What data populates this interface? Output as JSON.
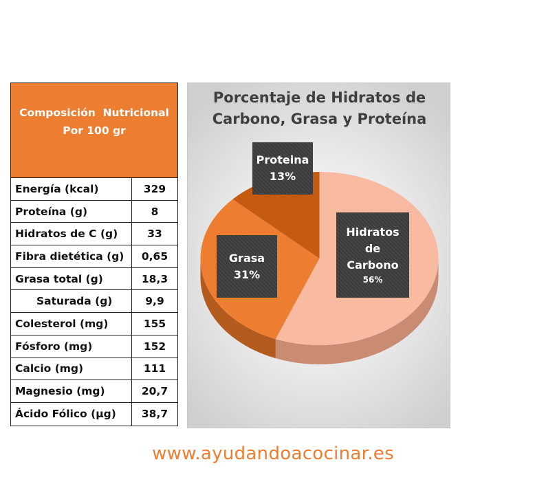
{
  "table": {
    "header_line1": "Composición  Nutricional",
    "header_line2": "Por 100 gr",
    "rows": [
      {
        "label": "Energía (kcal)",
        "value": "329"
      },
      {
        "label": "Proteína (g)",
        "value": "8"
      },
      {
        "label": "Hidratos de C (g)",
        "value": "33"
      },
      {
        "label": "Fibra dietética (g)",
        "value": "0,65"
      },
      {
        "label": "Grasa total (g)",
        "value": "18,3"
      },
      {
        "label": "Saturada (g)",
        "value": "9,9"
      },
      {
        "label": "Colesterol (mg)",
        "value": "155"
      },
      {
        "label": "Fósforo (mg)",
        "value": "152"
      },
      {
        "label": "Calcio (mg)",
        "value": "111"
      },
      {
        "label": "Magnesio (mg)",
        "value": "20,7"
      },
      {
        "label": "Ácido Fólico (µg)",
        "value": "38,7"
      }
    ]
  },
  "chart_data": {
    "type": "pie",
    "title": "Porcentaje de Hidratos de\nCarbono, Grasa y Proteína",
    "slices": [
      {
        "name": "Hidratos de Carbono",
        "label_lines": [
          "Hidratos",
          "de",
          "Carbono"
        ],
        "percent_label": "56%",
        "value": 56,
        "color": "#F8BBA1",
        "side_color": "#C98C73"
      },
      {
        "name": "Grasa",
        "label_lines": [
          "Grasa"
        ],
        "percent_label": "31%",
        "value": 31,
        "color": "#ED7D31",
        "side_color": "#B35A1F"
      },
      {
        "name": "Proteina",
        "label_lines": [
          "Proteina"
        ],
        "percent_label": "13%",
        "value": 13,
        "color": "#C55A11",
        "side_color": "#8E3F0A"
      }
    ],
    "style": "3d-pie",
    "labels": "dark boxes on slices",
    "legend": "none"
  },
  "footer": {
    "url": "www.ayudandoacocinar.es"
  },
  "colors": {
    "accent": "#ED7D31",
    "title_text": "#3F3F3F",
    "label_box": "#3B3B3B"
  }
}
